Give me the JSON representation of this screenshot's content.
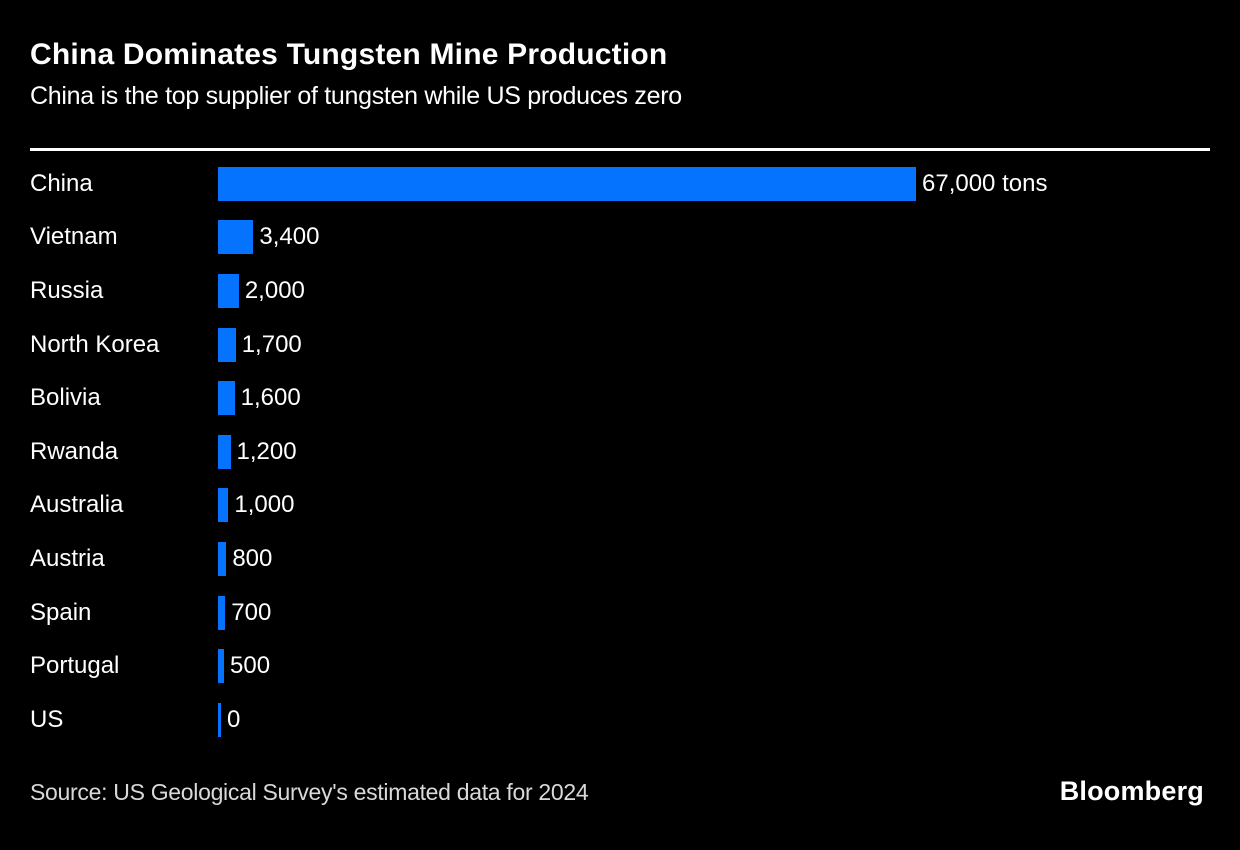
{
  "chart_data": {
    "type": "bar",
    "orientation": "horizontal",
    "title": "China Dominates Tungsten Mine Production",
    "subtitle": "China is the top supplier of tungsten while US produces zero",
    "source": "Source: US Geological Survey's estimated data for 2024",
    "brand": "Bloomberg",
    "unit": "tons",
    "categories": [
      "China",
      "Vietnam",
      "Russia",
      "North Korea",
      "Bolivia",
      "Rwanda",
      "Australia",
      "Austria",
      "Spain",
      "Portugal",
      "US"
    ],
    "values": [
      67000,
      3400,
      2000,
      1700,
      1600,
      1200,
      1000,
      800,
      700,
      500,
      0
    ],
    "value_labels": [
      "67,000 tons",
      "3,400",
      "2,000",
      "1,700",
      "1,600",
      "1,200",
      "1,000",
      "800",
      "700",
      "500",
      "0"
    ],
    "xlim": [
      0,
      67000
    ],
    "bar_color": "#0673ff",
    "background_color": "#000000",
    "grid": "off",
    "legend": "none"
  }
}
